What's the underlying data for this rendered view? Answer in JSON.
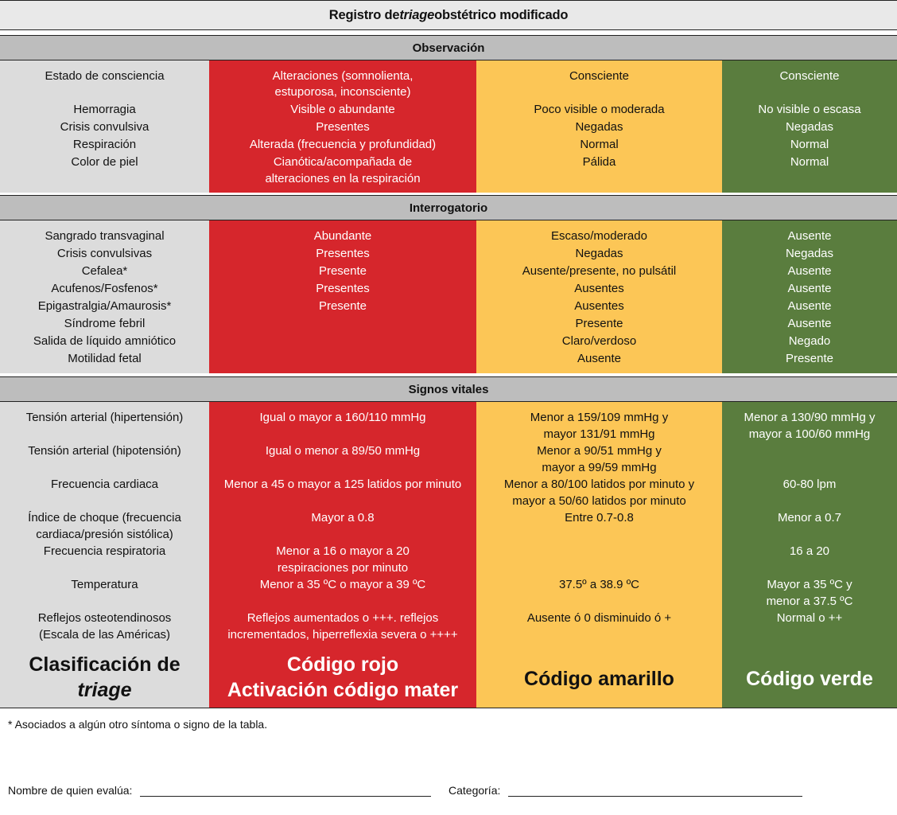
{
  "title": {
    "prefix": "Registro de ",
    "italic": "triage",
    "suffix": " obstétrico modificado"
  },
  "sections": {
    "observacion": "Observación",
    "interrogatorio": "Interrogatorio",
    "signos": "Signos vitales"
  },
  "observacion": {
    "labels": [
      "Estado de consciencia",
      "Hemorragia",
      "Crisis convulsiva",
      "Respiración",
      "Color de piel"
    ],
    "rojo": [
      "Alteraciones (somnolienta,",
      "estuporosa, inconsciente)",
      "Visible o abundante",
      "Presentes",
      "Alterada (frecuencia y profundidad)",
      "Cianótica/acompañada de",
      "alteraciones en la respiración"
    ],
    "amarillo": [
      "Consciente",
      "Poco visible o moderada",
      "Negadas",
      "Normal",
      "Pálida"
    ],
    "verde": [
      "Consciente",
      "No visible o escasa",
      "Negadas",
      "Normal",
      "Normal"
    ]
  },
  "interrogatorio": {
    "labels": [
      "Sangrado transvaginal",
      "Crisis convulsivas",
      "Cefalea*",
      "Acufenos/Fosfenos*",
      "Epigastralgia/Amaurosis*",
      "Síndrome febril",
      "Salida de líquido amniótico",
      "Motilidad fetal"
    ],
    "rojo": [
      "Abundante",
      "Presentes",
      "Presente",
      "Presentes",
      "Presente"
    ],
    "amarillo": [
      "Escaso/moderado",
      "Negadas",
      "Ausente/presente, no pulsátil",
      "Ausentes",
      "Ausentes",
      "Presente",
      "Claro/verdoso",
      "Ausente"
    ],
    "verde": [
      "Ausente",
      "Negadas",
      "Ausente",
      "Ausente",
      "Ausente",
      "Ausente",
      "Negado",
      "Presente"
    ]
  },
  "signos": {
    "labels": [
      "Tensión arterial (hipertensión)",
      "Tensión arterial (hipotensión)",
      "Frecuencia cardiaca",
      "Índice de choque (frecuencia",
      "cardiaca/presión sistólica)",
      "Frecuencia respiratoria",
      "Temperatura",
      "Reflejos osteotendinosos",
      "(Escala de las Américas)"
    ],
    "rojo": [
      "Igual o mayor a 160/110 mmHg",
      "Igual o menor a 89/50 mmHg",
      "Menor a 45 o mayor a 125 latidos por minuto",
      "Mayor a 0.8",
      "Menor a 16 o mayor a 20",
      "respiraciones por minuto",
      "Menor a 35 ºC o mayor a 39 ºC",
      "Reflejos aumentados o +++. reflejos",
      "incrementados, hiperreflexia severa o ++++"
    ],
    "amarillo": [
      "Menor a 159/109 mmHg y",
      "mayor 131/91 mmHg",
      "Menor a 90/51 mmHg y",
      "mayor a 99/59 mmHg",
      "Menor a 80/100 latidos por minuto y",
      "mayor a 50/60 latidos por minuto",
      "Entre 0.7-0.8",
      "37.5º a 38.9 ºC",
      "Ausente ó 0 disminuido ó +"
    ],
    "verde": [
      "Menor a 130/90 mmHg  y",
      "mayor a 100/60 mmHg",
      "60-80 lpm",
      "Menor a 0.7",
      "16 a 20",
      "Mayor a 35 ºC y",
      "menor a 37.5 ºC",
      "Normal o ++"
    ]
  },
  "clasificacion": {
    "label_line1": "Clasificación de",
    "label_line2": "triage",
    "rojo_line1": "Código rojo",
    "rojo_line2": "Activación código mater",
    "amarillo": "Código amarillo",
    "verde": "Código verde"
  },
  "footnote": "* Asociados a algún otro síntoma o signo de la tabla.",
  "firma": {
    "nombre": "Nombre de quien evalúa:",
    "categoria": "Categoría:"
  },
  "colors": {
    "rojo": "#d6262c",
    "amarillo": "#fcc656",
    "verde": "#5a7d3e",
    "gris": "#dcdcdc"
  }
}
